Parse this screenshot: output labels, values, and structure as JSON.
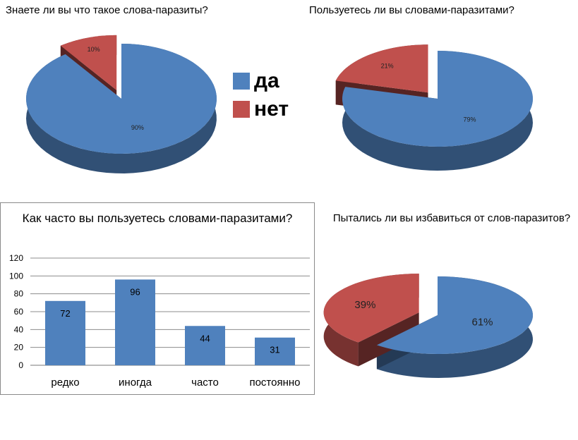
{
  "colors": {
    "blue": "#4f81bd",
    "red": "#c0504d"
  },
  "legend": [
    {
      "label": "да",
      "color": "#4f81bd"
    },
    {
      "label": "нет",
      "color": "#c0504d"
    }
  ],
  "chart_data": [
    {
      "type": "pie",
      "title": "Знаете ли вы что такое слова-паразиты?",
      "slices": [
        {
          "name": "да",
          "value": 90,
          "label": "90%"
        },
        {
          "name": "нет",
          "value": 10,
          "label": "10%"
        }
      ]
    },
    {
      "type": "pie",
      "title": "Пользуетесь ли вы словами-паразитами?",
      "slices": [
        {
          "name": "да",
          "value": 79,
          "label": "79%"
        },
        {
          "name": "нет",
          "value": 21,
          "label": "21%"
        }
      ]
    },
    {
      "type": "bar",
      "title": "Как часто вы пользуетесь словами-паразитами?",
      "categories": [
        "редко",
        "иногда",
        "часто",
        "постоянно"
      ],
      "values": [
        72,
        96,
        44,
        31
      ],
      "yticks": [
        "0",
        "20",
        "40",
        "60",
        "80",
        "100",
        "120"
      ],
      "ylim": [
        0,
        120
      ],
      "grid": true
    },
    {
      "type": "pie",
      "title": "Пытались ли вы избавиться от слов-паразитов?",
      "slices": [
        {
          "name": "да",
          "value": 61,
          "label": "61%"
        },
        {
          "name": "нет",
          "value": 39,
          "label": "39%"
        }
      ]
    }
  ]
}
